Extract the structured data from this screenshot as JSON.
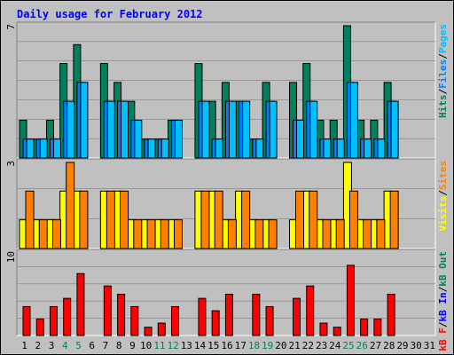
{
  "chart_data": {
    "type": "bar",
    "title": "Daily usage for February 2012",
    "colors": {
      "hits": "#00805c",
      "files": "#0080ff",
      "pages": "#00c0ff",
      "visits": "#ffff00",
      "sites": "#ff8000",
      "kbf": "#ff0000",
      "kbin": "#0000ff",
      "kbout": "#00805c",
      "weekend": "#00805c",
      "weekday": "#000000",
      "title": "#0000ff"
    },
    "days": [
      "1",
      "2",
      "3",
      "4",
      "5",
      "6",
      "7",
      "8",
      "9",
      "10",
      "11",
      "12",
      "13",
      "14",
      "15",
      "16",
      "17",
      "18",
      "19",
      "20",
      "21",
      "22",
      "23",
      "24",
      "25",
      "26",
      "27",
      "28",
      "29",
      "30",
      "31"
    ],
    "weekend_days": [
      4,
      5,
      11,
      12,
      18,
      19,
      25,
      26
    ],
    "panels": [
      {
        "id": "hits_files_pages",
        "ymax_label": "7",
        "ymax": 7,
        "legend": [
          "Hits",
          "/",
          "Files",
          "/",
          "Pages"
        ],
        "series": [
          {
            "name": "Hits",
            "values": [
              2,
              1,
              2,
              5,
              6,
              0,
              5,
              4,
              3,
              1,
              1,
              2,
              0,
              5,
              3,
              4,
              3,
              1,
              4,
              0,
              4,
              5,
              2,
              2,
              7,
              2,
              2,
              4,
              0,
              0,
              0
            ]
          },
          {
            "name": "Files",
            "values": [
              1,
              1,
              1,
              3,
              4,
              0,
              3,
              3,
              2,
              1,
              1,
              2,
              0,
              3,
              1,
              3,
              3,
              1,
              3,
              0,
              2,
              3,
              1,
              1,
              4,
              1,
              1,
              3,
              0,
              0,
              0
            ]
          },
          {
            "name": "Pages",
            "values": [
              1,
              1,
              1,
              3,
              4,
              0,
              3,
              3,
              2,
              1,
              1,
              2,
              0,
              3,
              1,
              3,
              3,
              1,
              3,
              0,
              2,
              3,
              1,
              1,
              4,
              1,
              1,
              3,
              0,
              0,
              0
            ]
          }
        ]
      },
      {
        "id": "visits_sites",
        "ymax_label": "3",
        "ymax": 3,
        "legend": [
          "Visits",
          "/",
          "Sites"
        ],
        "series": [
          {
            "name": "Visits",
            "values": [
              1,
              1,
              1,
              2,
              2,
              0,
              2,
              2,
              1,
              1,
              1,
              1,
              0,
              2,
              2,
              1,
              2,
              1,
              1,
              0,
              1,
              2,
              1,
              1,
              3,
              1,
              1,
              2,
              0,
              0,
              0
            ]
          },
          {
            "name": "Sites",
            "values": [
              2,
              1,
              1,
              3,
              2,
              0,
              2,
              2,
              1,
              1,
              1,
              1,
              0,
              2,
              2,
              1,
              2,
              1,
              1,
              0,
              2,
              2,
              1,
              1,
              2,
              1,
              1,
              2,
              0,
              0,
              0
            ]
          }
        ]
      },
      {
        "id": "kbytes",
        "ymax_label": "10",
        "ymax": 10,
        "legend": [
          "kB F",
          "/",
          "kB In",
          "/",
          "kB Out"
        ],
        "series": [
          {
            "name": "kB F",
            "values": [
              3.5,
              2,
              3.5,
              4.5,
              7.5,
              0,
              6,
              5,
              3.5,
              1,
              1.5,
              3.5,
              0,
              4.5,
              3,
              5,
              0,
              5,
              3.5,
              0,
              4.5,
              6,
              1.5,
              1,
              8.5,
              2,
              2,
              5,
              0,
              0,
              0
            ]
          },
          {
            "name": "kB In",
            "values": [
              0,
              0,
              0,
              0,
              0,
              0,
              0,
              0,
              0,
              0,
              0,
              0,
              0,
              0,
              0,
              0,
              0,
              0,
              0,
              0,
              0,
              0,
              0,
              0,
              0,
              0,
              0,
              0,
              0,
              0,
              0
            ]
          },
          {
            "name": "kB Out",
            "values": [
              0,
              0,
              0,
              0,
              0,
              0,
              0,
              0,
              0,
              0,
              0,
              0,
              0,
              0,
              0,
              0,
              0,
              0,
              0,
              0,
              0,
              0,
              0,
              0,
              0,
              0,
              0,
              0,
              0,
              0,
              0
            ]
          }
        ]
      }
    ]
  }
}
